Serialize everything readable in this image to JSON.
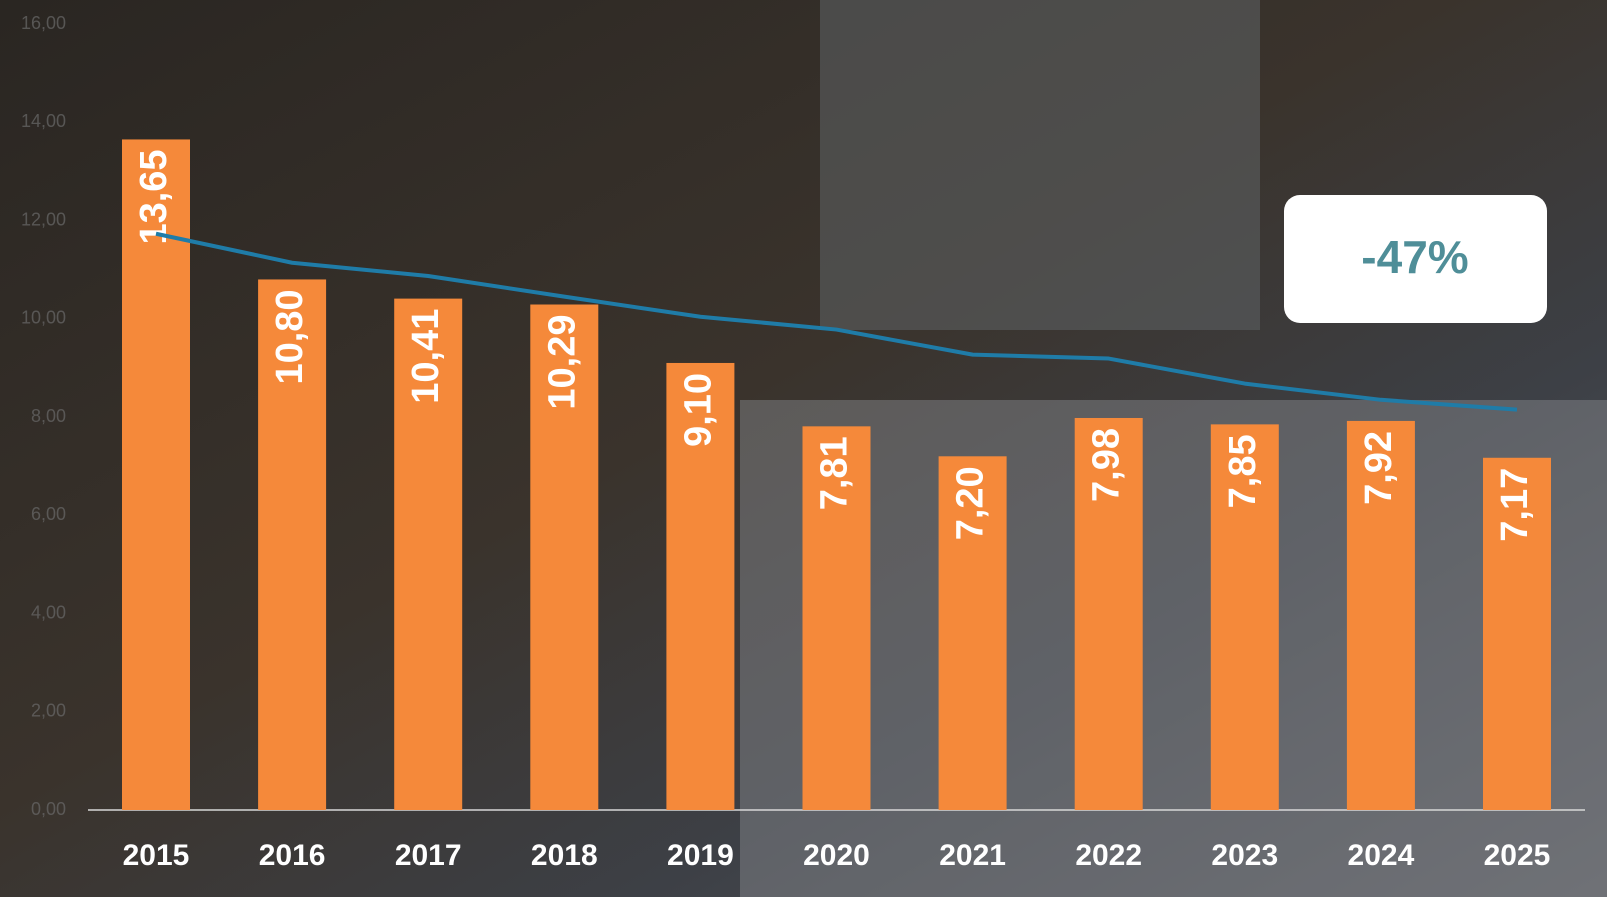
{
  "chart_data": {
    "type": "bar",
    "categories": [
      "2015",
      "2016",
      "2017",
      "2018",
      "2019",
      "2020",
      "2021",
      "2022",
      "2023",
      "2024",
      "2025"
    ],
    "series": [
      {
        "type": "bar",
        "color": "#f5893a",
        "values": [
          13.65,
          10.8,
          10.41,
          10.29,
          9.1,
          7.81,
          7.2,
          7.98,
          7.85,
          7.92,
          7.17
        ],
        "value_labels": [
          "13,65",
          "10,80",
          "10,41",
          "10,29",
          "9,10",
          "7,81",
          "7,20",
          "7,98",
          "7,85",
          "7,92",
          "7,17"
        ]
      },
      {
        "type": "line",
        "color": "#1f7ca8",
        "values": [
          11.73,
          11.14,
          10.87,
          10.45,
          10.04,
          9.78,
          9.27,
          9.19,
          8.68,
          8.35,
          8.15
        ]
      }
    ],
    "ylim": [
      0,
      16
    ],
    "yticks": [
      {
        "value": 0,
        "label": "0,00"
      },
      {
        "value": 2,
        "label": "2,00"
      },
      {
        "value": 4,
        "label": "4,00"
      },
      {
        "value": 6,
        "label": "6,00"
      },
      {
        "value": 8,
        "label": "8,00"
      },
      {
        "value": 10,
        "label": "10,00"
      },
      {
        "value": 12,
        "label": "12,00"
      },
      {
        "value": 14,
        "label": "14,00"
      },
      {
        "value": 16,
        "label": "16,00"
      }
    ],
    "annotation": "-47%"
  }
}
